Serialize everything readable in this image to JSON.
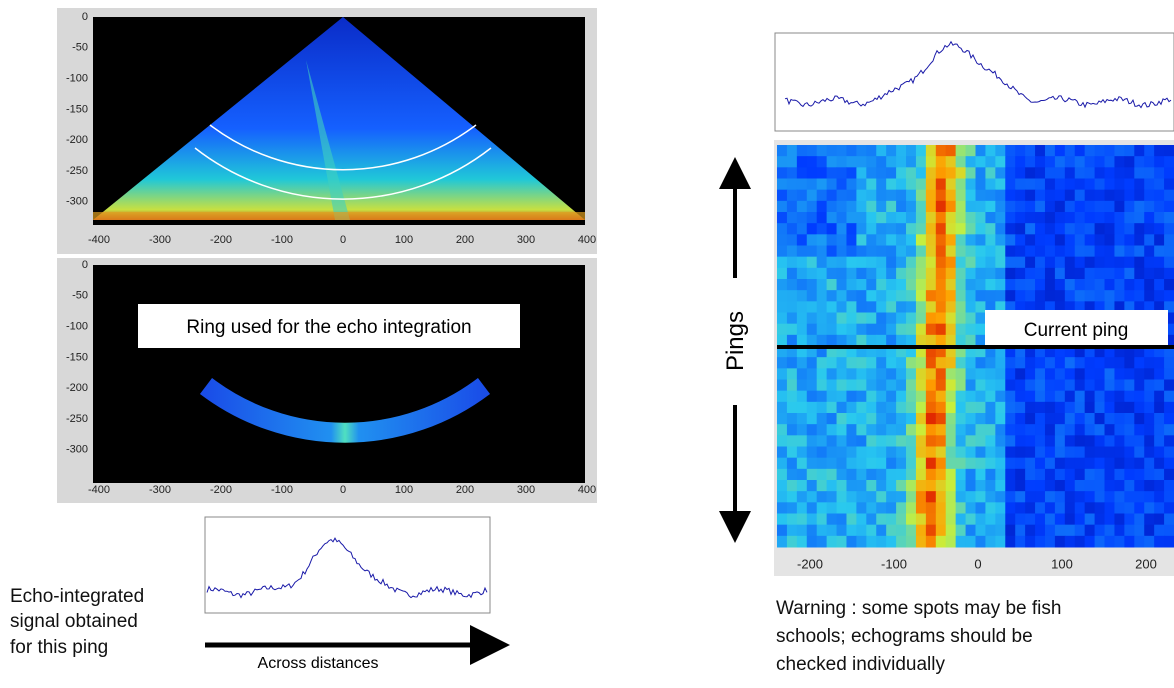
{
  "left_panels": [
    {
      "yticks": [
        0,
        -50,
        -100,
        -150,
        -200,
        -250,
        -300
      ],
      "xticks": [
        -400,
        -300,
        -200,
        -100,
        0,
        100,
        200,
        300,
        400
      ]
    },
    {
      "label": "Ring used for the echo integration",
      "yticks": [
        0,
        -50,
        -100,
        -150,
        -200,
        -250,
        -300
      ],
      "xticks": [
        -400,
        -300,
        -200,
        -100,
        0,
        100,
        200,
        300,
        400
      ]
    }
  ],
  "signal_caption": [
    "Echo-integrated",
    "signal obtained",
    "for this ping"
  ],
  "arrow_label": "Across distances",
  "echogram": {
    "y_label": "Pings",
    "current_label": "Current ping",
    "xticks": [
      -200,
      -100,
      0,
      100,
      200
    ]
  },
  "warning": [
    "Warning  : some spots may be fish",
    "schools; echograms should be",
    "checked individually"
  ]
}
